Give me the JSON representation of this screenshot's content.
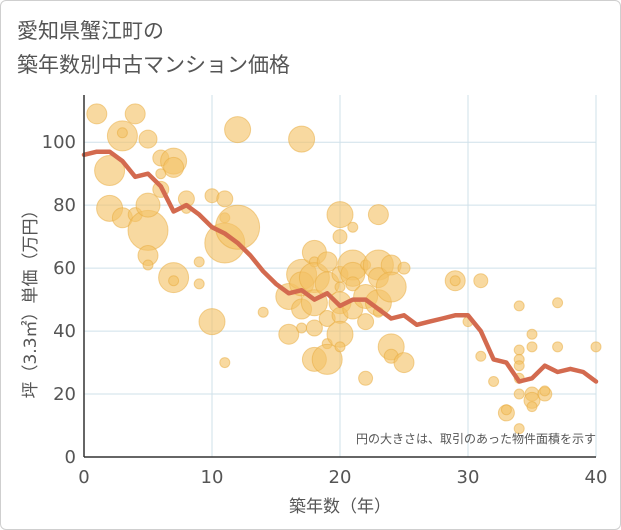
{
  "title_line1": "愛知県蟹江町の",
  "title_line2": "築年数別中古マンション価格",
  "colors": {
    "bubble_fill": "#f3c265",
    "bubble_stroke": "#e8a93a",
    "line": "#d36a4f",
    "grid": "#cfe0ea",
    "axis": "#333333"
  },
  "chart_data": {
    "type": "scatter",
    "xlabel": "築年数（年）",
    "ylabel": "坪（3.3㎡）単価（万円）",
    "xlim": [
      0,
      40
    ],
    "ylim": [
      0,
      115
    ],
    "xticks": [
      0,
      10,
      20,
      30,
      40
    ],
    "yticks": [
      0,
      20,
      40,
      60,
      80,
      100
    ],
    "grid": true,
    "note": "円の大きさは、取引のあった物件面積を示す",
    "bubbles": [
      {
        "x": 1,
        "y": 109,
        "r": 10
      },
      {
        "x": 2,
        "y": 91,
        "r": 15
      },
      {
        "x": 3,
        "y": 102,
        "r": 15
      },
      {
        "x": 3,
        "y": 103,
        "r": 5
      },
      {
        "x": 4,
        "y": 109,
        "r": 10
      },
      {
        "x": 5,
        "y": 101,
        "r": 9
      },
      {
        "x": 2,
        "y": 79,
        "r": 13
      },
      {
        "x": 3,
        "y": 76,
        "r": 10
      },
      {
        "x": 4,
        "y": 77,
        "r": 7
      },
      {
        "x": 5,
        "y": 72,
        "r": 20
      },
      {
        "x": 5,
        "y": 80,
        "r": 12
      },
      {
        "x": 5,
        "y": 64,
        "r": 10
      },
      {
        "x": 5,
        "y": 61,
        "r": 5
      },
      {
        "x": 6,
        "y": 95,
        "r": 8
      },
      {
        "x": 7,
        "y": 94,
        "r": 13
      },
      {
        "x": 7,
        "y": 92,
        "r": 10
      },
      {
        "x": 6,
        "y": 85,
        "r": 8
      },
      {
        "x": 6,
        "y": 90,
        "r": 5
      },
      {
        "x": 7,
        "y": 57,
        "r": 15
      },
      {
        "x": 7,
        "y": 56,
        "r": 5
      },
      {
        "x": 8,
        "y": 82,
        "r": 8
      },
      {
        "x": 8,
        "y": 79,
        "r": 5
      },
      {
        "x": 9,
        "y": 62,
        "r": 5
      },
      {
        "x": 9,
        "y": 55,
        "r": 5
      },
      {
        "x": 10,
        "y": 83,
        "r": 7
      },
      {
        "x": 10,
        "y": 43,
        "r": 13
      },
      {
        "x": 11,
        "y": 82,
        "r": 8
      },
      {
        "x": 11,
        "y": 68,
        "r": 20
      },
      {
        "x": 11,
        "y": 76,
        "r": 5
      },
      {
        "x": 11,
        "y": 30,
        "r": 5
      },
      {
        "x": 12,
        "y": 104,
        "r": 13
      },
      {
        "x": 12,
        "y": 73,
        "r": 22
      },
      {
        "x": 14,
        "y": 46,
        "r": 5
      },
      {
        "x": 16,
        "y": 39,
        "r": 10
      },
      {
        "x": 16,
        "y": 51,
        "r": 13
      },
      {
        "x": 17,
        "y": 101,
        "r": 13
      },
      {
        "x": 17,
        "y": 58,
        "r": 15
      },
      {
        "x": 17,
        "y": 55,
        "r": 12
      },
      {
        "x": 17,
        "y": 47,
        "r": 10
      },
      {
        "x": 17,
        "y": 41,
        "r": 5
      },
      {
        "x": 18,
        "y": 65,
        "r": 12
      },
      {
        "x": 18,
        "y": 62,
        "r": 5
      },
      {
        "x": 18,
        "y": 57,
        "r": 15
      },
      {
        "x": 18,
        "y": 49,
        "r": 13
      },
      {
        "x": 18,
        "y": 41,
        "r": 8
      },
      {
        "x": 18,
        "y": 31,
        "r": 12
      },
      {
        "x": 19,
        "y": 62,
        "r": 10
      },
      {
        "x": 19,
        "y": 55,
        "r": 12
      },
      {
        "x": 19,
        "y": 44,
        "r": 8
      },
      {
        "x": 19,
        "y": 36,
        "r": 5
      },
      {
        "x": 19,
        "y": 31,
        "r": 15
      },
      {
        "x": 20,
        "y": 77,
        "r": 13
      },
      {
        "x": 20,
        "y": 70,
        "r": 7
      },
      {
        "x": 20,
        "y": 58,
        "r": 8
      },
      {
        "x": 20,
        "y": 54,
        "r": 5
      },
      {
        "x": 20,
        "y": 49,
        "r": 11
      },
      {
        "x": 20,
        "y": 45,
        "r": 8
      },
      {
        "x": 20,
        "y": 39,
        "r": 13
      },
      {
        "x": 20,
        "y": 35,
        "r": 5
      },
      {
        "x": 21,
        "y": 73,
        "r": 5
      },
      {
        "x": 21,
        "y": 61,
        "r": 15
      },
      {
        "x": 21,
        "y": 58,
        "r": 12
      },
      {
        "x": 21,
        "y": 55,
        "r": 7
      },
      {
        "x": 21,
        "y": 47,
        "r": 10
      },
      {
        "x": 22,
        "y": 61,
        "r": 5
      },
      {
        "x": 22,
        "y": 51,
        "r": 12
      },
      {
        "x": 22,
        "y": 43,
        "r": 8
      },
      {
        "x": 22,
        "y": 25,
        "r": 7
      },
      {
        "x": 23,
        "y": 77,
        "r": 10
      },
      {
        "x": 23,
        "y": 61,
        "r": 15
      },
      {
        "x": 23,
        "y": 57,
        "r": 10
      },
      {
        "x": 23,
        "y": 49,
        "r": 13
      },
      {
        "x": 23,
        "y": 46,
        "r": 5
      },
      {
        "x": 24,
        "y": 61,
        "r": 10
      },
      {
        "x": 24,
        "y": 54,
        "r": 15
      },
      {
        "x": 24,
        "y": 35,
        "r": 13
      },
      {
        "x": 24,
        "y": 32,
        "r": 7
      },
      {
        "x": 25,
        "y": 60,
        "r": 6
      },
      {
        "x": 25,
        "y": 30,
        "r": 10
      },
      {
        "x": 29,
        "y": 56,
        "r": 10
      },
      {
        "x": 29,
        "y": 56,
        "r": 5
      },
      {
        "x": 30,
        "y": 43,
        "r": 5
      },
      {
        "x": 31,
        "y": 56,
        "r": 7
      },
      {
        "x": 31,
        "y": 32,
        "r": 5
      },
      {
        "x": 32,
        "y": 24,
        "r": 5
      },
      {
        "x": 33,
        "y": 14,
        "r": 8
      },
      {
        "x": 33,
        "y": 15,
        "r": 5
      },
      {
        "x": 34,
        "y": 48,
        "r": 5
      },
      {
        "x": 34,
        "y": 34,
        "r": 5
      },
      {
        "x": 34,
        "y": 31,
        "r": 5
      },
      {
        "x": 34,
        "y": 29,
        "r": 5
      },
      {
        "x": 34,
        "y": 25,
        "r": 5
      },
      {
        "x": 34,
        "y": 20,
        "r": 5
      },
      {
        "x": 34,
        "y": 9,
        "r": 5
      },
      {
        "x": 35,
        "y": 39,
        "r": 5
      },
      {
        "x": 35,
        "y": 35,
        "r": 5
      },
      {
        "x": 35,
        "y": 20,
        "r": 7
      },
      {
        "x": 35,
        "y": 18,
        "r": 8
      },
      {
        "x": 35,
        "y": 16,
        "r": 5
      },
      {
        "x": 36,
        "y": 20,
        "r": 7
      },
      {
        "x": 36,
        "y": 21,
        "r": 5
      },
      {
        "x": 37,
        "y": 49,
        "r": 5
      },
      {
        "x": 37,
        "y": 35,
        "r": 5
      },
      {
        "x": 40,
        "y": 35,
        "r": 5
      }
    ],
    "series": [
      {
        "x": [
          0,
          1,
          2,
          3,
          4,
          5,
          6,
          7,
          8,
          9,
          10,
          11,
          12,
          13,
          14,
          15,
          16,
          17,
          18,
          19,
          20,
          21,
          22,
          23,
          24,
          25,
          26,
          27,
          28,
          29,
          30,
          31,
          32,
          33,
          34,
          35,
          36,
          37,
          38,
          39,
          40
        ],
        "y": [
          96,
          97,
          97,
          94,
          89,
          90,
          86,
          78,
          80,
          77,
          73,
          71,
          68,
          64,
          59,
          55,
          52,
          53,
          50,
          52,
          48,
          50,
          50,
          47,
          44,
          45,
          42,
          43,
          44,
          45,
          45,
          40,
          31,
          30,
          24,
          25,
          29,
          27,
          28,
          27,
          24
        ]
      }
    ],
    "tick_labels_x": [
      "0",
      "10",
      "20",
      "30",
      "40"
    ],
    "tick_labels_y": [
      "0",
      "20",
      "40",
      "60",
      "80",
      "100"
    ]
  }
}
